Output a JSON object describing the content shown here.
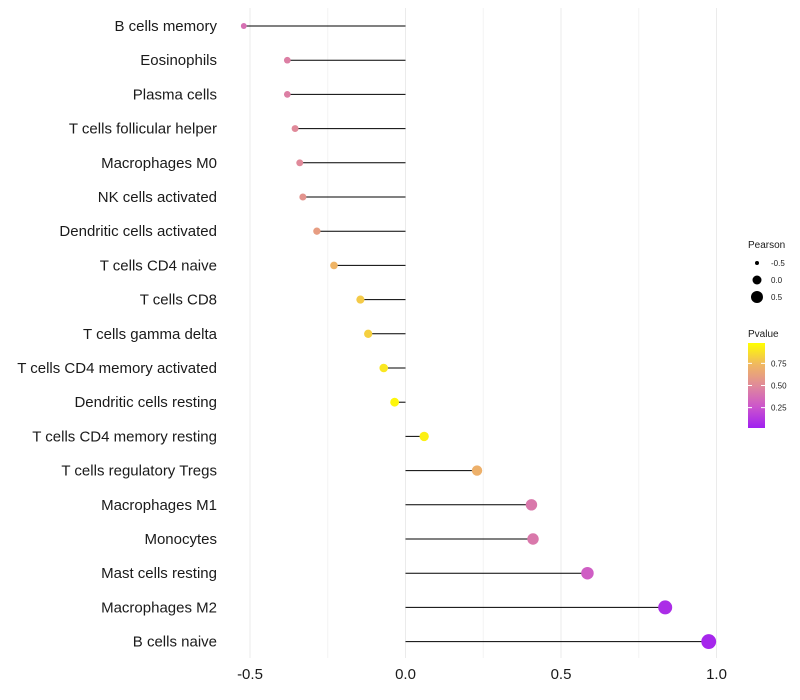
{
  "chart_data": {
    "type": "lollipop",
    "title": "",
    "xlabel": "",
    "ylabel": "",
    "xlim": [
      -0.55,
      1.05
    ],
    "x_ticks": [
      -0.5,
      0.0,
      0.5,
      1.0
    ],
    "x_tick_labels": [
      "-0.5",
      "0.0",
      "0.5",
      "1.0"
    ],
    "grid": "vertical",
    "categories": [
      "B cells memory",
      "Eosinophils",
      "Plasma cells",
      "T cells follicular helper",
      "Macrophages M0",
      "NK cells activated",
      "Dendritic cells activated",
      "T cells CD4 naive",
      "T cells CD8",
      "T cells gamma delta",
      "T cells CD4 memory activated",
      "Dendritic cells resting",
      "T cells CD4 memory resting",
      "T cells regulatory  Tregs ",
      "Macrophages M1",
      "Monocytes",
      "Mast cells resting",
      "Macrophages M2",
      "B cells naive"
    ],
    "pearson": [
      -0.52,
      -0.38,
      -0.38,
      -0.355,
      -0.34,
      -0.33,
      -0.285,
      -0.23,
      -0.145,
      -0.12,
      -0.07,
      -0.035,
      0.06,
      0.23,
      0.405,
      0.41,
      0.585,
      0.835,
      0.975
    ],
    "pvalue": [
      0.38,
      0.45,
      0.45,
      0.5,
      0.5,
      0.55,
      0.6,
      0.72,
      0.8,
      0.82,
      0.9,
      0.95,
      0.93,
      0.7,
      0.42,
      0.42,
      0.3,
      0.08,
      0.05
    ],
    "legend": {
      "size_title": "Pearson",
      "size_items": [
        "-0.5",
        "0.0",
        "0.5"
      ],
      "color_title": "Pvalue",
      "color_ticks": [
        "0.75",
        "0.50",
        "0.25"
      ],
      "color_tick_values": [
        0.75,
        0.5,
        0.25
      ],
      "color_range": [
        0.02,
        0.98
      ],
      "color_low": "#a020f0",
      "color_high": "#ffff00",
      "placement": "right"
    }
  }
}
